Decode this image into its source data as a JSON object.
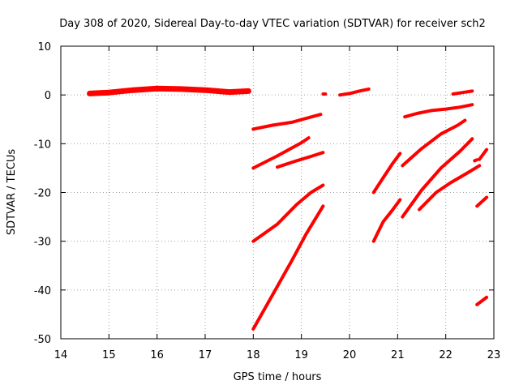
{
  "chart_data": {
    "type": "scatter",
    "title": "Day 308 of 2020, Sidereal Day-to-day VTEC variation (SDTVAR) for receiver sch2",
    "xlabel": "GPS time / hours",
    "ylabel": "SDTVAR / TECUs",
    "xlim": [
      14,
      23
    ],
    "ylim": [
      -50,
      10
    ],
    "xticks": [
      14,
      15,
      16,
      17,
      18,
      19,
      20,
      21,
      22,
      23
    ],
    "yticks": [
      -50,
      -40,
      -30,
      -20,
      -10,
      0,
      10
    ],
    "grid": true,
    "legend": "none",
    "color": "#ff0000",
    "series": [
      {
        "x": [
          14.6,
          15.0,
          15.5,
          16.0,
          16.5,
          17.0,
          17.5,
          17.9
        ],
        "y": [
          0.3,
          0.5,
          1.0,
          1.3,
          1.2,
          1.0,
          0.6,
          0.8
        ]
      },
      {
        "x": [
          19.45,
          19.5
        ],
        "y": [
          0.2,
          0.2
        ]
      },
      {
        "x": [
          19.8,
          20.0,
          20.2,
          20.4
        ],
        "y": [
          0.0,
          0.3,
          0.8,
          1.2
        ]
      },
      {
        "x": [
          22.15,
          22.35,
          22.55
        ],
        "y": [
          0.2,
          0.5,
          0.8
        ]
      },
      {
        "x": [
          18.0,
          18.4,
          18.8,
          19.1,
          19.4
        ],
        "y": [
          -7.0,
          -6.2,
          -5.6,
          -4.8,
          -4.0
        ]
      },
      {
        "x": [
          18.0,
          18.5,
          19.0,
          19.15
        ],
        "y": [
          -15.0,
          -12.5,
          -9.8,
          -8.8
        ]
      },
      {
        "x": [
          18.5,
          18.9,
          19.2,
          19.45
        ],
        "y": [
          -14.8,
          -13.5,
          -12.6,
          -11.8
        ]
      },
      {
        "x": [
          18.0,
          18.5,
          18.9,
          19.2,
          19.45
        ],
        "y": [
          -30.0,
          -26.5,
          -22.5,
          -20.0,
          -18.5
        ]
      },
      {
        "x": [
          18.0,
          18.4,
          18.8,
          19.1,
          19.45
        ],
        "y": [
          -48.0,
          -41.0,
          -34.0,
          -28.5,
          -22.8
        ]
      },
      {
        "x": [
          20.5,
          20.7,
          20.9,
          21.05
        ],
        "y": [
          -20.0,
          -17.0,
          -14.0,
          -12.0
        ]
      },
      {
        "x": [
          20.5,
          20.7,
          20.9,
          21.05
        ],
        "y": [
          -30.0,
          -26.0,
          -23.5,
          -21.5
        ]
      },
      {
        "x": [
          21.15,
          21.4,
          21.7,
          22.0,
          22.3,
          22.55
        ],
        "y": [
          -4.5,
          -3.8,
          -3.2,
          -2.9,
          -2.5,
          -2.0
        ]
      },
      {
        "x": [
          21.1,
          21.5,
          21.9,
          22.25,
          22.4
        ],
        "y": [
          -14.5,
          -11.0,
          -8.0,
          -6.2,
          -5.2
        ]
      },
      {
        "x": [
          21.1,
          21.5,
          21.9,
          22.3,
          22.55
        ],
        "y": [
          -25.0,
          -19.5,
          -15.0,
          -11.5,
          -9.0
        ]
      },
      {
        "x": [
          21.45,
          21.8,
          22.1,
          22.45,
          22.7
        ],
        "y": [
          -23.5,
          -20.0,
          -18.0,
          -16.0,
          -14.5
        ]
      },
      {
        "x": [
          22.6,
          22.65
        ],
        "y": [
          -13.5,
          -13.3
        ]
      },
      {
        "x": [
          22.7,
          22.85
        ],
        "y": [
          -13.2,
          -11.2
        ]
      },
      {
        "x": [
          22.65,
          22.85
        ],
        "y": [
          -22.8,
          -21.0
        ]
      },
      {
        "x": [
          22.65,
          22.85
        ],
        "y": [
          -43.0,
          -41.5
        ]
      }
    ]
  }
}
